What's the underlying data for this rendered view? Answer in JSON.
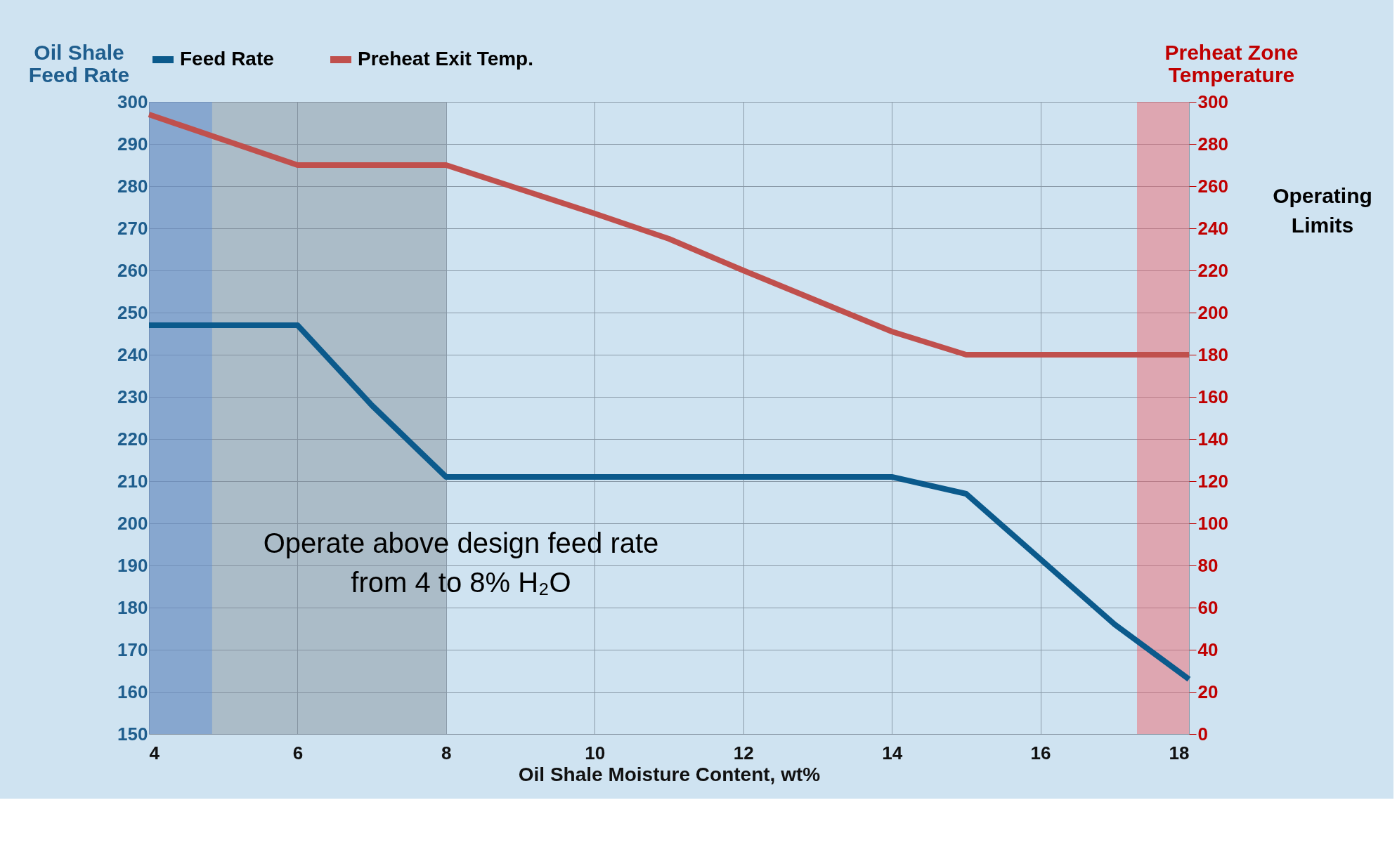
{
  "chart_data": {
    "type": "line",
    "xlabel": "Oil Shale Moisture Content, wt%",
    "ylabel": "Oil Shale Feed Rate",
    "y2label": "Preheat Zone Temperature",
    "series": [
      {
        "name": "Feed Rate",
        "color": "#0b5a8c",
        "x": [
          4,
          6,
          7,
          8,
          14,
          15,
          17,
          18
        ],
        "values": [
          247,
          247,
          228,
          211,
          211,
          207,
          176,
          163
        ]
      },
      {
        "name": "Preheat Exit Temp.",
        "color": "#c0504d",
        "axis": "y2",
        "x": [
          4,
          6,
          8,
          10,
          11,
          12,
          14,
          15,
          18
        ],
        "values": [
          294,
          270,
          270,
          247,
          235,
          220,
          191,
          180,
          180
        ]
      }
    ],
    "xlim": [
      4,
      18
    ],
    "xticks": [
      4,
      6,
      8,
      10,
      12,
      14,
      16,
      18
    ],
    "ylim": [
      150,
      300
    ],
    "yticks": [
      150,
      160,
      170,
      180,
      190,
      200,
      210,
      220,
      230,
      240,
      250,
      260,
      270,
      280,
      290,
      300
    ],
    "y2lim": [
      0,
      300
    ],
    "y2ticks": [
      0,
      20,
      40,
      60,
      80,
      100,
      120,
      140,
      160,
      180,
      200,
      220,
      240,
      260,
      280,
      300
    ],
    "bands": [
      {
        "axis": "x",
        "from": 4,
        "to": 8,
        "color": "#7f8c96"
      },
      {
        "axis": "x",
        "from": 4,
        "to": 4.85,
        "color": "#5b8fd6"
      },
      {
        "axis": "x",
        "from": 17.3,
        "to": 18,
        "color": "#f05a64"
      }
    ],
    "annotations": [
      "Operate above design feed rate from 4 to 8% H₂O",
      "Operating Limits"
    ],
    "grid": true,
    "legend": "top",
    "line_style": "solid",
    "marker": "none"
  }
}
